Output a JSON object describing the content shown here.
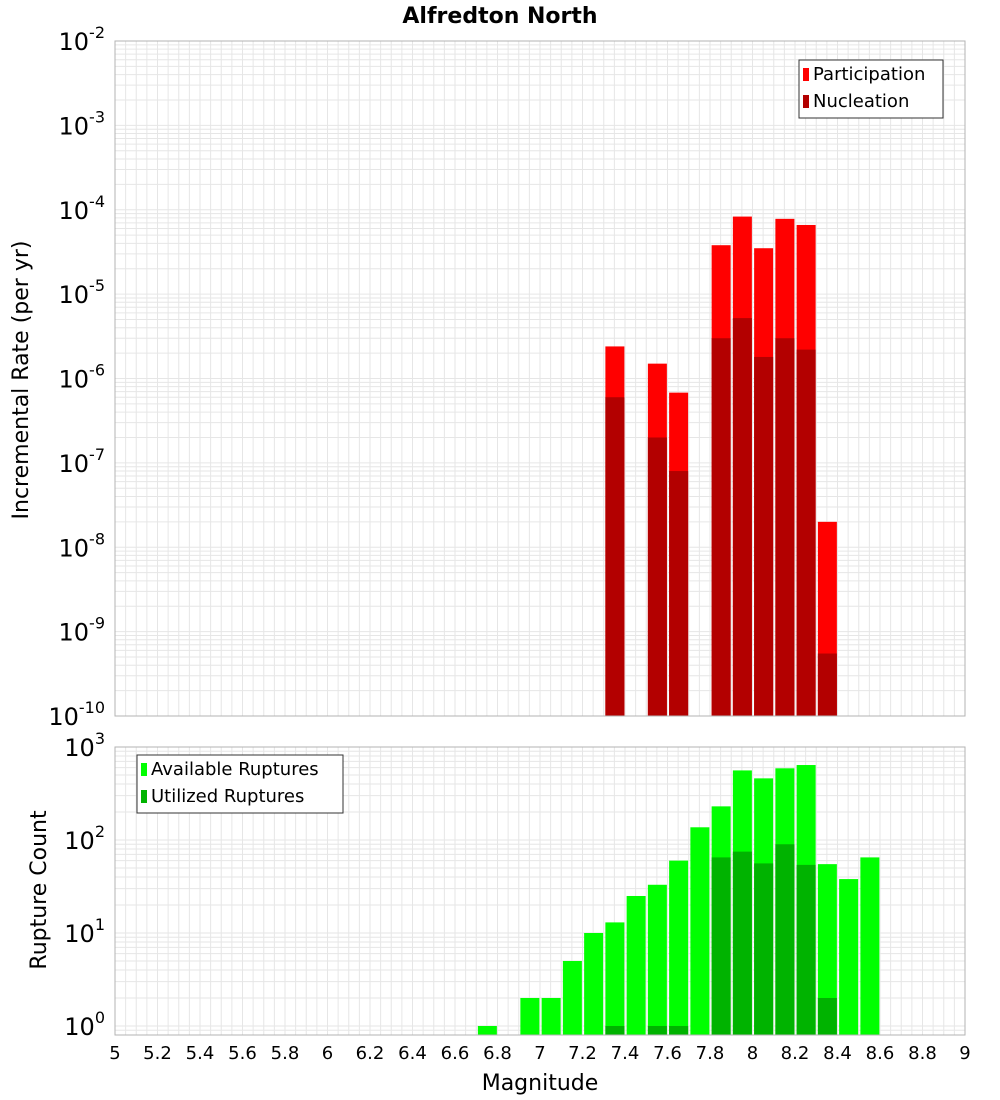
{
  "colors": {
    "participation": "#ff0000",
    "nucleation": "#b30000",
    "available": "#00ff00",
    "utilized": "#00b300",
    "grid": "#e6e6e6",
    "frame": "#b3b3b3"
  },
  "chart_data": [
    {
      "type": "bar",
      "title": "Alfredton North",
      "ylabel": "Incremental Rate (per yr)",
      "xlabel": "",
      "yscale": "log",
      "ylim": [
        1e-10,
        0.01
      ],
      "xlim": [
        5,
        9
      ],
      "y_tick_bases": [
        "10",
        "10",
        "10",
        "10",
        "10",
        "10",
        "10",
        "10",
        "10"
      ],
      "y_tick_exponents": [
        "-10",
        "-9",
        "-8",
        "-7",
        "-6",
        "-5",
        "-4",
        "-3",
        "-2"
      ],
      "legend": [
        "Participation",
        "Nucleation"
      ],
      "legend_position": "top-right",
      "grid": true,
      "series": [
        {
          "name": "Participation",
          "x": [
            7.3,
            7.5,
            7.6,
            7.8,
            7.9,
            8.0,
            8.1,
            8.2,
            8.3
          ],
          "values": [
            2.4e-06,
            1.5e-06,
            6.8e-07,
            3.8e-05,
            8.3e-05,
            3.5e-05,
            7.8e-05,
            6.6e-05,
            2e-08
          ]
        },
        {
          "name": "Nucleation",
          "x": [
            7.3,
            7.5,
            7.6,
            7.8,
            7.9,
            8.0,
            8.1,
            8.2,
            8.3
          ],
          "values": [
            6e-07,
            2e-07,
            8e-08,
            3e-06,
            5.2e-06,
            1.8e-06,
            3e-06,
            2.2e-06,
            5.5e-10
          ]
        }
      ]
    },
    {
      "type": "bar",
      "title": "",
      "ylabel": "Rupture Count",
      "xlabel": "Magnitude",
      "yscale": "log",
      "ylim": [
        0.8,
        1000
      ],
      "xlim": [
        5,
        9
      ],
      "y_tick_bases": [
        "10",
        "10",
        "10",
        "10"
      ],
      "y_tick_exponents": [
        "0",
        "1",
        "2",
        "3"
      ],
      "x_ticks": [
        "5",
        "5.2",
        "5.4",
        "5.6",
        "5.8",
        "6",
        "6.2",
        "6.4",
        "6.6",
        "6.8",
        "7",
        "7.2",
        "7.4",
        "7.6",
        "7.8",
        "8",
        "8.2",
        "8.4",
        "8.6",
        "8.8",
        "9"
      ],
      "legend": [
        "Available Ruptures",
        "Utilized Ruptures"
      ],
      "legend_position": "top-left",
      "grid": true,
      "series": [
        {
          "name": "Available Ruptures",
          "x": [
            6.7,
            6.9,
            7.0,
            7.1,
            7.2,
            7.3,
            7.4,
            7.5,
            7.6,
            7.7,
            7.8,
            7.9,
            8.0,
            8.1,
            8.2,
            8.3,
            8.4,
            8.5
          ],
          "values": [
            1,
            2,
            2,
            5,
            10,
            13,
            25,
            33,
            60,
            137,
            230,
            560,
            460,
            590,
            640,
            55,
            38,
            65
          ]
        },
        {
          "name": "Utilized Ruptures",
          "x": [
            7.3,
            7.5,
            7.6,
            7.8,
            7.9,
            8.0,
            8.1,
            8.2,
            8.3
          ],
          "values": [
            1,
            1,
            1,
            65,
            75,
            56,
            90,
            54,
            2
          ]
        }
      ]
    }
  ]
}
